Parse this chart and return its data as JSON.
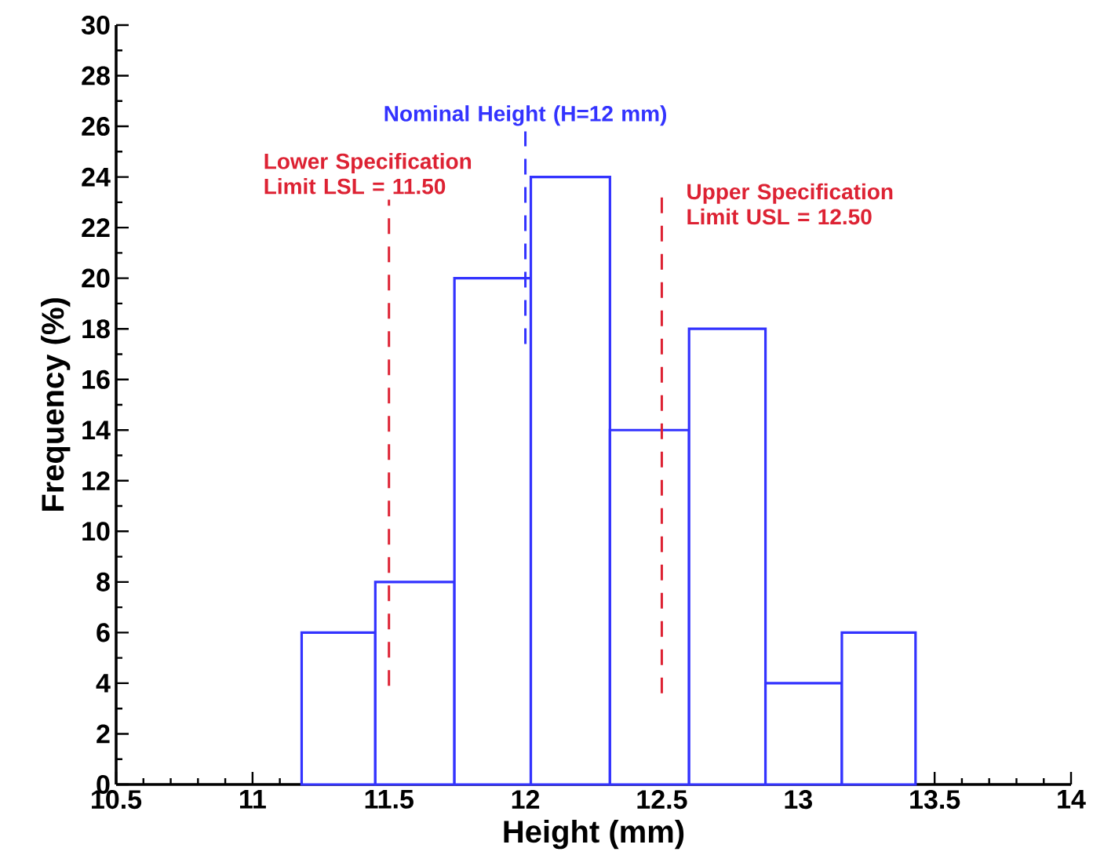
{
  "chart_data": {
    "type": "histogram",
    "xlabel": "Height (mm)",
    "ylabel": "Frequency (%)",
    "bins": [
      11.18,
      11.45,
      11.74,
      12.02,
      12.31,
      12.6,
      12.88,
      13.16,
      13.43
    ],
    "values": [
      6,
      8,
      20,
      24,
      14,
      18,
      4,
      6
    ],
    "color": "#3333ff",
    "xlim": [
      10.5,
      14
    ],
    "xticks": [
      10.5,
      11,
      11.5,
      12,
      12.5,
      13,
      13.5,
      14
    ],
    "ylim": [
      0,
      30
    ],
    "yticks": [
      0,
      2,
      4,
      6,
      8,
      10,
      12,
      14,
      16,
      18,
      20,
      22,
      24,
      26,
      28,
      30
    ],
    "grid": false,
    "ref_lines": [
      {
        "axis": "x",
        "value": 11.5,
        "label": "Lower Specification Limit LSL = 11.50",
        "color": "#dd2233",
        "line_style": "dashed"
      },
      {
        "axis": "x",
        "value": 12,
        "label": "Nominal Height (H=12 mm)",
        "color": "#3333ff",
        "line_style": "dashed"
      },
      {
        "axis": "x",
        "value": 12.5,
        "label": "Upper Specification Limit USL = 12.50",
        "color": "#dd2233",
        "line_style": "dashed"
      }
    ]
  }
}
